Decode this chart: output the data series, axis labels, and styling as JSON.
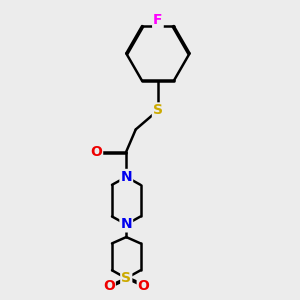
{
  "bg_color": "#ececec",
  "atom_colors": {
    "C": "#000000",
    "N": "#0000ee",
    "O": "#ee0000",
    "S": "#ccaa00",
    "F": "#ff00ff"
  },
  "bond_color": "#000000",
  "bond_width": 1.8,
  "fig_w": 3.0,
  "fig_h": 3.0,
  "dpi": 100
}
